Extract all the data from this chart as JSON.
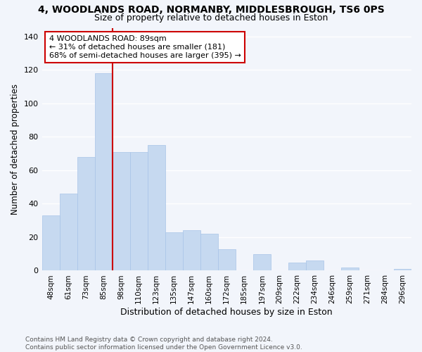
{
  "title": "4, WOODLANDS ROAD, NORMANBY, MIDDLESBROUGH, TS6 0PS",
  "subtitle": "Size of property relative to detached houses in Eston",
  "xlabel": "Distribution of detached houses by size in Eston",
  "ylabel": "Number of detached properties",
  "footer": "Contains HM Land Registry data © Crown copyright and database right 2024.\nContains public sector information licensed under the Open Government Licence v3.0.",
  "annotation_line1": "4 WOODLANDS ROAD: 89sqm",
  "annotation_line2": "← 31% of detached houses are smaller (181)",
  "annotation_line3": "68% of semi-detached houses are larger (395) →",
  "subject_value": 89,
  "bar_categories": [
    "48sqm",
    "61sqm",
    "73sqm",
    "85sqm",
    "98sqm",
    "110sqm",
    "123sqm",
    "135sqm",
    "147sqm",
    "160sqm",
    "172sqm",
    "185sqm",
    "197sqm",
    "209sqm",
    "222sqm",
    "234sqm",
    "246sqm",
    "259sqm",
    "271sqm",
    "284sqm",
    "296sqm"
  ],
  "bar_values": [
    33,
    46,
    68,
    118,
    71,
    71,
    75,
    23,
    24,
    22,
    13,
    0,
    10,
    0,
    5,
    6,
    0,
    2,
    0,
    0,
    1
  ],
  "subject_bar_index": 3,
  "subject_line_color": "#cc0000",
  "bar_color": "#c6d9f0",
  "bar_edge_color": "#a8c4e8",
  "annotation_box_color": "#cc0000",
  "background_color": "#f2f5fb",
  "ylim": [
    0,
    145
  ],
  "yticks": [
    0,
    20,
    40,
    60,
    80,
    100,
    120,
    140
  ],
  "title_fontsize": 10,
  "subtitle_fontsize": 9
}
